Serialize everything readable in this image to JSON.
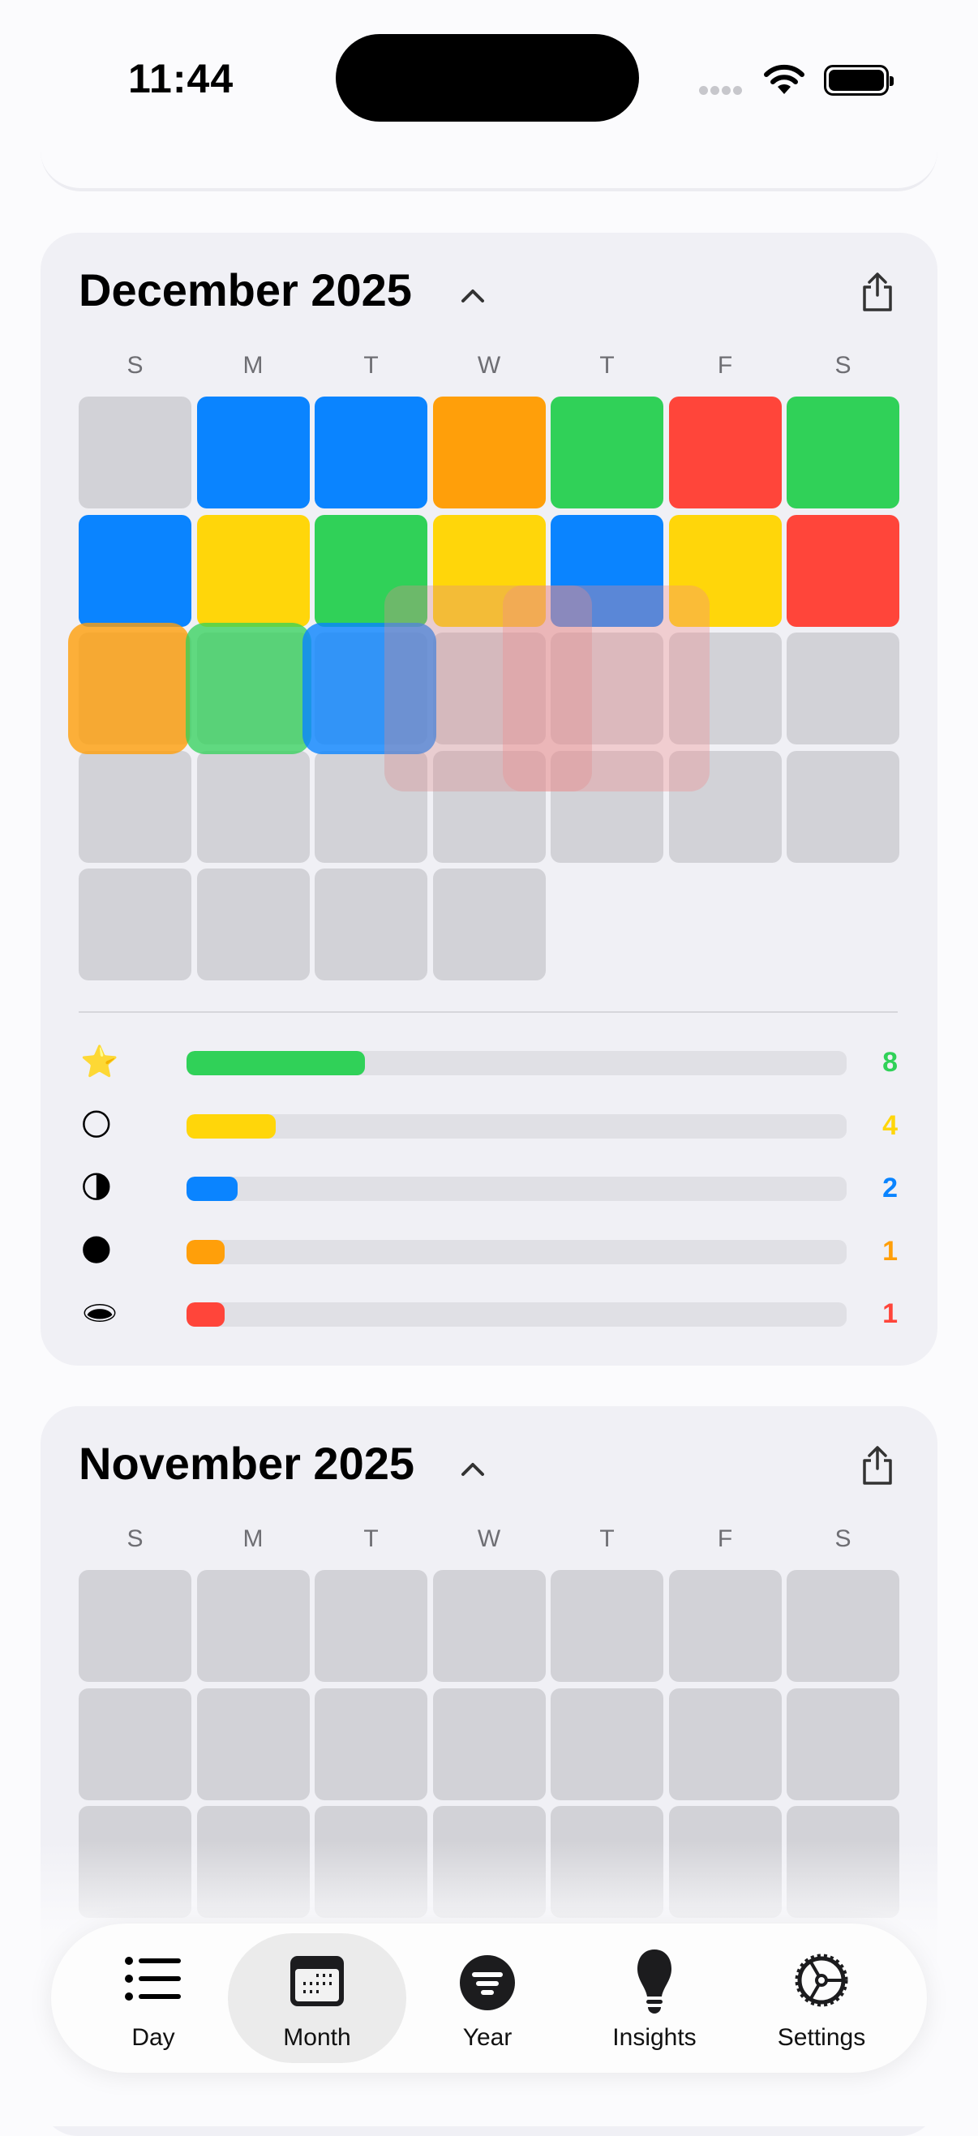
{
  "status_bar": {
    "time": "11:44"
  },
  "colors": {
    "green": "#30d158",
    "yellow": "#ffd60a",
    "blue": "#0a84ff",
    "orange": "#ff9f0a",
    "red": "#ff453a",
    "empty": "#d2d2d7"
  },
  "weekdays": [
    "S",
    "M",
    "T",
    "W",
    "T",
    "F",
    "S"
  ],
  "months": [
    {
      "title": "December 2025",
      "cells": [
        "empty",
        "blue",
        "blue",
        "orange",
        "green",
        "red",
        "green",
        "blue",
        "yellow",
        "green",
        "yellow",
        "blue",
        "yellow",
        "red",
        "empty",
        "empty",
        "empty",
        "empty",
        "empty",
        "empty",
        "empty",
        "empty",
        "empty",
        "empty",
        "empty",
        "empty",
        "empty",
        "empty",
        "empty",
        "empty",
        "empty",
        "empty"
      ],
      "stats": [
        {
          "emoji": "⭐",
          "icon": "star-icon",
          "color": "green",
          "count": "8",
          "fraction": 0.27
        },
        {
          "emoji": "🌕",
          "icon": "full-moon-icon",
          "color": "yellow",
          "count": "4",
          "fraction": 0.135
        },
        {
          "emoji": "🌗",
          "icon": "half-moon-icon",
          "color": "blue",
          "count": "2",
          "fraction": 0.078
        },
        {
          "emoji": "🌑",
          "icon": "new-moon-icon",
          "color": "orange",
          "count": "1",
          "fraction": 0.058
        },
        {
          "emoji": "🕳",
          "icon": "hole-icon",
          "color": "red",
          "count": "1",
          "fraction": 0.058
        }
      ]
    },
    {
      "title": "November 2025",
      "cells": [
        "empty",
        "empty",
        "empty",
        "empty",
        "empty",
        "empty",
        "empty",
        "empty",
        "empty",
        "empty",
        "empty",
        "empty",
        "empty",
        "empty",
        "empty",
        "empty",
        "empty",
        "empty",
        "empty",
        "empty",
        "empty"
      ]
    }
  ],
  "tabs": [
    {
      "label": "Day",
      "icon": "list-icon",
      "active": false
    },
    {
      "label": "Month",
      "icon": "calendar-icon",
      "active": true
    },
    {
      "label": "Year",
      "icon": "filter-circle-icon",
      "active": false
    },
    {
      "label": "Insights",
      "icon": "lightbulb-icon",
      "active": false
    },
    {
      "label": "Settings",
      "icon": "gear-icon",
      "active": false
    }
  ]
}
